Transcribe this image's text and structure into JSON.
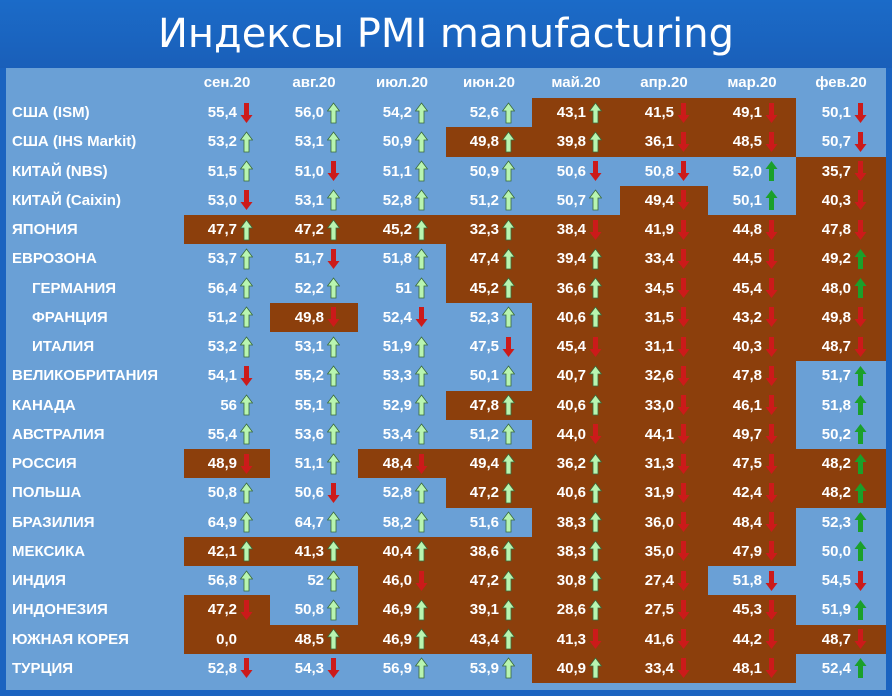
{
  "title": "Индексы PMI manufacturing",
  "colors": {
    "low": "#8c3f0c",
    "high": "#6aa0d6",
    "up_light": "#b8f5b0",
    "up_dark": "#1aa02a",
    "down": "#cc1a1a"
  },
  "columns": [
    "сен.20",
    "авг.20",
    "июл.20",
    "июн.20",
    "май.20",
    "апр.20",
    "мар.20",
    "фев.20"
  ],
  "rows": [
    {
      "country": "США (ISM)",
      "sub": false,
      "cells": [
        {
          "v": "55,4",
          "a": "down",
          "low": false
        },
        {
          "v": "56,0",
          "a": "up",
          "low": false
        },
        {
          "v": "54,2",
          "a": "up",
          "low": false
        },
        {
          "v": "52,6",
          "a": "up",
          "low": false
        },
        {
          "v": "43,1",
          "a": "up",
          "low": true
        },
        {
          "v": "41,5",
          "a": "down",
          "low": true
        },
        {
          "v": "49,1",
          "a": "down",
          "low": true
        },
        {
          "v": "50,1",
          "a": "down",
          "low": false
        }
      ]
    },
    {
      "country": "США (IHS Markit)",
      "sub": false,
      "cells": [
        {
          "v": "53,2",
          "a": "up",
          "low": false
        },
        {
          "v": "53,1",
          "a": "up",
          "low": false
        },
        {
          "v": "50,9",
          "a": "up",
          "low": false
        },
        {
          "v": "49,8",
          "a": "up",
          "low": true
        },
        {
          "v": "39,8",
          "a": "up",
          "low": true
        },
        {
          "v": "36,1",
          "a": "down",
          "low": true
        },
        {
          "v": "48,5",
          "a": "down",
          "low": true
        },
        {
          "v": "50,7",
          "a": "down",
          "low": false
        }
      ]
    },
    {
      "country": "КИТАЙ (NBS)",
      "sub": false,
      "cells": [
        {
          "v": "51,5",
          "a": "up",
          "low": false
        },
        {
          "v": "51,0",
          "a": "down",
          "low": false
        },
        {
          "v": "51,1",
          "a": "up",
          "low": false
        },
        {
          "v": "50,9",
          "a": "up",
          "low": false
        },
        {
          "v": "50,6",
          "a": "down",
          "low": false
        },
        {
          "v": "50,8",
          "a": "down",
          "low": false
        },
        {
          "v": "52,0",
          "a": "upg",
          "low": false
        },
        {
          "v": "35,7",
          "a": "down",
          "low": true
        }
      ]
    },
    {
      "country": "КИТАЙ (Caixin)",
      "sub": false,
      "cells": [
        {
          "v": "53,0",
          "a": "down",
          "low": false
        },
        {
          "v": "53,1",
          "a": "up",
          "low": false
        },
        {
          "v": "52,8",
          "a": "up",
          "low": false
        },
        {
          "v": "51,2",
          "a": "up",
          "low": false
        },
        {
          "v": "50,7",
          "a": "up",
          "low": false
        },
        {
          "v": "49,4",
          "a": "down",
          "low": true
        },
        {
          "v": "50,1",
          "a": "upg",
          "low": false
        },
        {
          "v": "40,3",
          "a": "down",
          "low": true
        }
      ]
    },
    {
      "country": "ЯПОНИЯ",
      "sub": false,
      "cells": [
        {
          "v": "47,7",
          "a": "up",
          "low": true
        },
        {
          "v": "47,2",
          "a": "up",
          "low": true
        },
        {
          "v": "45,2",
          "a": "up",
          "low": true
        },
        {
          "v": "32,3",
          "a": "up",
          "low": true
        },
        {
          "v": "38,4",
          "a": "down",
          "low": true
        },
        {
          "v": "41,9",
          "a": "down",
          "low": true
        },
        {
          "v": "44,8",
          "a": "down",
          "low": true
        },
        {
          "v": "47,8",
          "a": "down",
          "low": true
        }
      ]
    },
    {
      "country": "ЕВРОЗОНА",
      "sub": false,
      "cells": [
        {
          "v": "53,7",
          "a": "up",
          "low": false
        },
        {
          "v": "51,7",
          "a": "down",
          "low": false
        },
        {
          "v": "51,8",
          "a": "up",
          "low": false
        },
        {
          "v": "47,4",
          "a": "up",
          "low": true
        },
        {
          "v": "39,4",
          "a": "up",
          "low": true
        },
        {
          "v": "33,4",
          "a": "down",
          "low": true
        },
        {
          "v": "44,5",
          "a": "down",
          "low": true
        },
        {
          "v": "49,2",
          "a": "upg",
          "low": true
        }
      ]
    },
    {
      "country": "ГЕРМАНИЯ",
      "sub": true,
      "cells": [
        {
          "v": "56,4",
          "a": "up",
          "low": false
        },
        {
          "v": "52,2",
          "a": "up",
          "low": false
        },
        {
          "v": "51",
          "a": "up",
          "low": false
        },
        {
          "v": "45,2",
          "a": "up",
          "low": true
        },
        {
          "v": "36,6",
          "a": "up",
          "low": true
        },
        {
          "v": "34,5",
          "a": "down",
          "low": true
        },
        {
          "v": "45,4",
          "a": "down",
          "low": true
        },
        {
          "v": "48,0",
          "a": "upg",
          "low": true
        }
      ]
    },
    {
      "country": "ФРАНЦИЯ",
      "sub": true,
      "cells": [
        {
          "v": "51,2",
          "a": "up",
          "low": false
        },
        {
          "v": "49,8",
          "a": "down",
          "low": true
        },
        {
          "v": "52,4",
          "a": "down",
          "low": false
        },
        {
          "v": "52,3",
          "a": "up",
          "low": false
        },
        {
          "v": "40,6",
          "a": "up",
          "low": true
        },
        {
          "v": "31,5",
          "a": "down",
          "low": true
        },
        {
          "v": "43,2",
          "a": "down",
          "low": true
        },
        {
          "v": "49,8",
          "a": "down",
          "low": true
        }
      ]
    },
    {
      "country": "ИТАЛИЯ",
      "sub": true,
      "cells": [
        {
          "v": "53,2",
          "a": "up",
          "low": false
        },
        {
          "v": "53,1",
          "a": "up",
          "low": false
        },
        {
          "v": "51,9",
          "a": "up",
          "low": false
        },
        {
          "v": "47,5",
          "a": "down",
          "low": false
        },
        {
          "v": "45,4",
          "a": "down",
          "low": true
        },
        {
          "v": "31,1",
          "a": "down",
          "low": true
        },
        {
          "v": "40,3",
          "a": "down",
          "low": true
        },
        {
          "v": "48,7",
          "a": "down",
          "low": true
        }
      ]
    },
    {
      "country": "ВЕЛИКОБРИТАНИЯ",
      "sub": false,
      "cells": [
        {
          "v": "54,1",
          "a": "down",
          "low": false
        },
        {
          "v": "55,2",
          "a": "up",
          "low": false
        },
        {
          "v": "53,3",
          "a": "up",
          "low": false
        },
        {
          "v": "50,1",
          "a": "up",
          "low": false
        },
        {
          "v": "40,7",
          "a": "up",
          "low": true
        },
        {
          "v": "32,6",
          "a": "down",
          "low": true
        },
        {
          "v": "47,8",
          "a": "down",
          "low": true
        },
        {
          "v": "51,7",
          "a": "upg",
          "low": false
        }
      ]
    },
    {
      "country": "КАНАДА",
      "sub": false,
      "cells": [
        {
          "v": "56",
          "a": "up",
          "low": false
        },
        {
          "v": "55,1",
          "a": "up",
          "low": false
        },
        {
          "v": "52,9",
          "a": "up",
          "low": false
        },
        {
          "v": "47,8",
          "a": "up",
          "low": true
        },
        {
          "v": "40,6",
          "a": "up",
          "low": true
        },
        {
          "v": "33,0",
          "a": "down",
          "low": true
        },
        {
          "v": "46,1",
          "a": "down",
          "low": true
        },
        {
          "v": "51,8",
          "a": "upg",
          "low": false
        }
      ]
    },
    {
      "country": "АВСТРАЛИЯ",
      "sub": false,
      "cells": [
        {
          "v": "55,4",
          "a": "up",
          "low": false
        },
        {
          "v": "53,6",
          "a": "up",
          "low": false
        },
        {
          "v": "53,4",
          "a": "up",
          "low": false
        },
        {
          "v": "51,2",
          "a": "up",
          "low": false
        },
        {
          "v": "44,0",
          "a": "down",
          "low": true
        },
        {
          "v": "44,1",
          "a": "down",
          "low": true
        },
        {
          "v": "49,7",
          "a": "down",
          "low": true
        },
        {
          "v": "50,2",
          "a": "upg",
          "low": false
        }
      ]
    },
    {
      "country": "РОССИЯ",
      "sub": false,
      "cells": [
        {
          "v": "48,9",
          "a": "down",
          "low": true
        },
        {
          "v": "51,1",
          "a": "up",
          "low": false
        },
        {
          "v": "48,4",
          "a": "down",
          "low": true
        },
        {
          "v": "49,4",
          "a": "up",
          "low": true
        },
        {
          "v": "36,2",
          "a": "up",
          "low": true
        },
        {
          "v": "31,3",
          "a": "down",
          "low": true
        },
        {
          "v": "47,5",
          "a": "down",
          "low": true
        },
        {
          "v": "48,2",
          "a": "upg",
          "low": true
        }
      ]
    },
    {
      "country": "ПОЛЬША",
      "sub": false,
      "cells": [
        {
          "v": "50,8",
          "a": "up",
          "low": false
        },
        {
          "v": "50,6",
          "a": "down",
          "low": false
        },
        {
          "v": "52,8",
          "a": "up",
          "low": false
        },
        {
          "v": "47,2",
          "a": "up",
          "low": true
        },
        {
          "v": "40,6",
          "a": "up",
          "low": true
        },
        {
          "v": "31,9",
          "a": "down",
          "low": true
        },
        {
          "v": "42,4",
          "a": "down",
          "low": true
        },
        {
          "v": "48,2",
          "a": "upg",
          "low": true
        }
      ]
    },
    {
      "country": "БРАЗИЛИЯ",
      "sub": false,
      "cells": [
        {
          "v": "64,9",
          "a": "up",
          "low": false
        },
        {
          "v": "64,7",
          "a": "up",
          "low": false
        },
        {
          "v": "58,2",
          "a": "up",
          "low": false
        },
        {
          "v": "51,6",
          "a": "up",
          "low": false
        },
        {
          "v": "38,3",
          "a": "up",
          "low": true
        },
        {
          "v": "36,0",
          "a": "down",
          "low": true
        },
        {
          "v": "48,4",
          "a": "down",
          "low": true
        },
        {
          "v": "52,3",
          "a": "upg",
          "low": false
        }
      ]
    },
    {
      "country": "МЕКСИКА",
      "sub": false,
      "cells": [
        {
          "v": "42,1",
          "a": "up",
          "low": true
        },
        {
          "v": "41,3",
          "a": "up",
          "low": true
        },
        {
          "v": "40,4",
          "a": "up",
          "low": true
        },
        {
          "v": "38,6",
          "a": "up",
          "low": true
        },
        {
          "v": "38,3",
          "a": "up",
          "low": true
        },
        {
          "v": "35,0",
          "a": "down",
          "low": true
        },
        {
          "v": "47,9",
          "a": "down",
          "low": true
        },
        {
          "v": "50,0",
          "a": "upg",
          "low": false
        }
      ]
    },
    {
      "country": "ИНДИЯ",
      "sub": false,
      "cells": [
        {
          "v": "56,8",
          "a": "up",
          "low": false
        },
        {
          "v": "52",
          "a": "up",
          "low": false
        },
        {
          "v": "46,0",
          "a": "down",
          "low": true
        },
        {
          "v": "47,2",
          "a": "up",
          "low": true
        },
        {
          "v": "30,8",
          "a": "up",
          "low": true
        },
        {
          "v": "27,4",
          "a": "down",
          "low": true
        },
        {
          "v": "51,8",
          "a": "down",
          "low": false
        },
        {
          "v": "54,5",
          "a": "down",
          "low": false
        }
      ]
    },
    {
      "country": "ИНДОНЕЗИЯ",
      "sub": false,
      "cells": [
        {
          "v": "47,2",
          "a": "down",
          "low": true
        },
        {
          "v": "50,8",
          "a": "up",
          "low": false
        },
        {
          "v": "46,9",
          "a": "up",
          "low": true
        },
        {
          "v": "39,1",
          "a": "up",
          "low": true
        },
        {
          "v": "28,6",
          "a": "up",
          "low": true
        },
        {
          "v": "27,5",
          "a": "down",
          "low": true
        },
        {
          "v": "45,3",
          "a": "down",
          "low": true
        },
        {
          "v": "51,9",
          "a": "upg",
          "low": false
        }
      ]
    },
    {
      "country": "ЮЖНАЯ КОРЕЯ",
      "sub": false,
      "cells": [
        {
          "v": "0,0",
          "a": "none",
          "low": true
        },
        {
          "v": "48,5",
          "a": "up",
          "low": true
        },
        {
          "v": "46,9",
          "a": "up",
          "low": true
        },
        {
          "v": "43,4",
          "a": "up",
          "low": true
        },
        {
          "v": "41,3",
          "a": "down",
          "low": true
        },
        {
          "v": "41,6",
          "a": "down",
          "low": true
        },
        {
          "v": "44,2",
          "a": "down",
          "low": true
        },
        {
          "v": "48,7",
          "a": "down",
          "low": true
        }
      ]
    },
    {
      "country": "ТУРЦИЯ",
      "sub": false,
      "cells": [
        {
          "v": "52,8",
          "a": "down",
          "low": false
        },
        {
          "v": "54,3",
          "a": "down",
          "low": false
        },
        {
          "v": "56,9",
          "a": "up",
          "low": false
        },
        {
          "v": "53,9",
          "a": "up",
          "low": false
        },
        {
          "v": "40,9",
          "a": "up",
          "low": true
        },
        {
          "v": "33,4",
          "a": "down",
          "low": true
        },
        {
          "v": "48,1",
          "a": "down",
          "low": true
        },
        {
          "v": "52,4",
          "a": "upg",
          "low": false
        }
      ]
    }
  ]
}
